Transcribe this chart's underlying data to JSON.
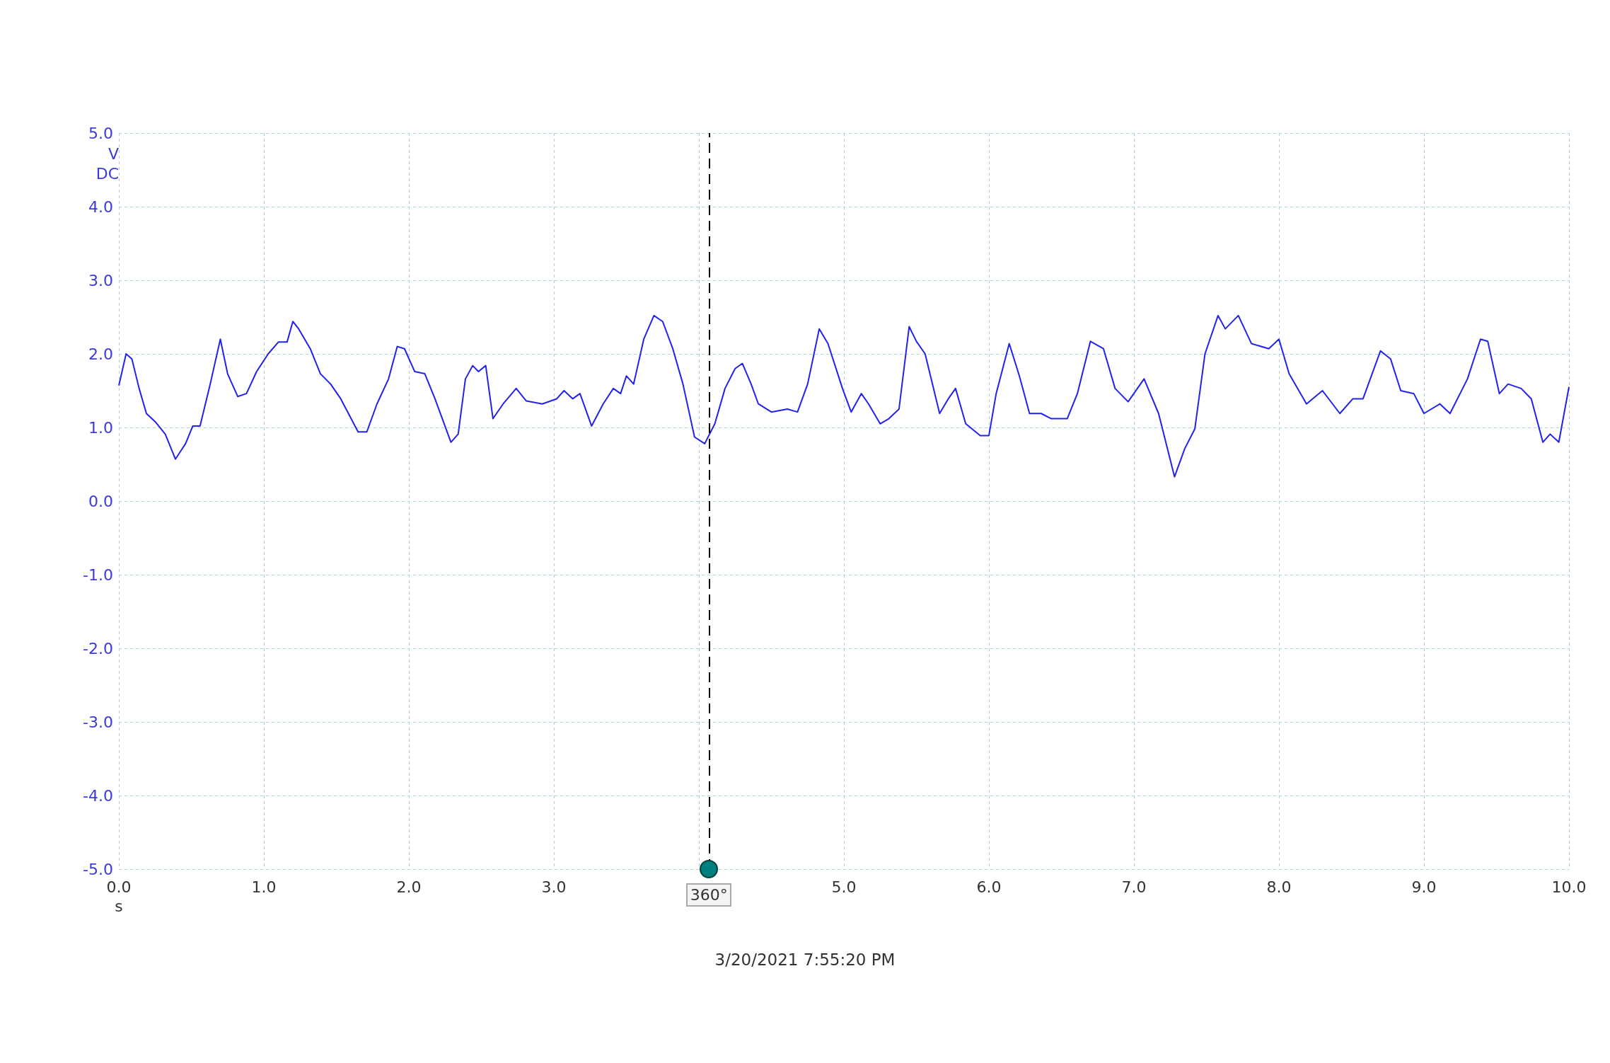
{
  "chart_data": {
    "type": "line",
    "xlabel": "s",
    "ylabel": "V DC",
    "annotations": [
      "3/20/2021 7:55:20 PM",
      {
        "text": "360°",
        "x": 4.07,
        "y": -5
      }
    ],
    "xlim": [
      0,
      10
    ],
    "ylim": [
      -5,
      5
    ],
    "xticks": [
      {
        "value": 0,
        "label": "0.0"
      },
      {
        "value": 1,
        "label": "1.0"
      },
      {
        "value": 2,
        "label": "2.0"
      },
      {
        "value": 3,
        "label": "3.0"
      },
      {
        "value": 4,
        "label": null
      },
      {
        "value": 5,
        "label": "5.0"
      },
      {
        "value": 6,
        "label": "6.0"
      },
      {
        "value": 7,
        "label": "7.0"
      },
      {
        "value": 8,
        "label": "8.0"
      },
      {
        "value": 9,
        "label": "9.0"
      },
      {
        "value": 10,
        "label": "10.0"
      }
    ],
    "yticks": [
      {
        "value": -5,
        "label": "-5.0"
      },
      {
        "value": -4,
        "label": "-4.0"
      },
      {
        "value": -3,
        "label": "-3.0"
      },
      {
        "value": -2,
        "label": "-2.0"
      },
      {
        "value": -1,
        "label": "-1.0"
      },
      {
        "value": 0,
        "label": "0.0"
      },
      {
        "value": 1,
        "label": "1.0"
      },
      {
        "value": 2,
        "label": "2.0"
      },
      {
        "value": 3,
        "label": "3.0"
      },
      {
        "value": 4,
        "label": "4.0"
      },
      {
        "value": 5,
        "label": "5.0"
      }
    ],
    "grid": true,
    "marker": "none",
    "line_style": "solid",
    "ref_lines": [
      {
        "axis": "x",
        "value": 4.07,
        "color": "#000000",
        "line_style": "dashed"
      }
    ],
    "series": [
      {
        "color": "#2222ee",
        "x": [
          0,
          0.05,
          0.09,
          0.14,
          0.19,
          0.25,
          0.32,
          0.39,
          0.46,
          0.51,
          0.56,
          0.63,
          0.7,
          0.75,
          0.82,
          0.88,
          0.95,
          1.03,
          1.1,
          1.16,
          1.2,
          1.24,
          1.32,
          1.39,
          1.46,
          1.53,
          1.65,
          1.71,
          1.78,
          1.86,
          1.92,
          1.97,
          2.04,
          2.11,
          2.18,
          2.29,
          2.34,
          2.39,
          2.44,
          2.48,
          2.53,
          2.58,
          2.65,
          2.74,
          2.81,
          2.92,
          3.02,
          3.07,
          3.13,
          3.18,
          3.26,
          3.34,
          3.41,
          3.46,
          3.5,
          3.55,
          3.62,
          3.69,
          3.75,
          3.82,
          3.89,
          3.97,
          4.04,
          4.11,
          4.18,
          4.25,
          4.3,
          4.36,
          4.41,
          4.5,
          4.61,
          4.68,
          4.75,
          4.83,
          4.89,
          4.99,
          5.05,
          5.12,
          5.17,
          5.25,
          5.31,
          5.38,
          5.45,
          5.5,
          5.56,
          5.66,
          5.72,
          5.77,
          5.84,
          5.94,
          6,
          6.05,
          6.14,
          6.21,
          6.28,
          6.36,
          6.43,
          6.54,
          6.61,
          6.7,
          6.79,
          6.87,
          6.96,
          7.07,
          7.17,
          7.28,
          7.35,
          7.42,
          7.49,
          7.58,
          7.63,
          7.72,
          7.81,
          7.93,
          8,
          8.07,
          8.19,
          8.3,
          8.42,
          8.51,
          8.58,
          8.7,
          8.77,
          8.84,
          8.93,
          9,
          9.11,
          9.18,
          9.3,
          9.39,
          9.44,
          9.52,
          9.58,
          9.67,
          9.74,
          9.82,
          9.87,
          9.93,
          10
        ],
        "values": [
          1.57,
          2,
          1.93,
          1.53,
          1.19,
          1.08,
          0.91,
          0.57,
          0.78,
          1.02,
          1.02,
          1.59,
          2.2,
          1.73,
          1.42,
          1.46,
          1.76,
          2,
          2.16,
          2.16,
          2.44,
          2.34,
          2.07,
          1.73,
          1.59,
          1.39,
          0.94,
          0.94,
          1.32,
          1.66,
          2.1,
          2.07,
          1.76,
          1.73,
          1.39,
          0.8,
          0.91,
          1.66,
          1.84,
          1.76,
          1.84,
          1.12,
          1.32,
          1.53,
          1.36,
          1.32,
          1.39,
          1.5,
          1.39,
          1.46,
          1.02,
          1.32,
          1.53,
          1.46,
          1.7,
          1.59,
          2.2,
          2.52,
          2.44,
          2.07,
          1.59,
          0.87,
          0.78,
          1.05,
          1.53,
          1.8,
          1.87,
          1.59,
          1.32,
          1.21,
          1.25,
          1.21,
          1.59,
          2.34,
          2.14,
          1.53,
          1.21,
          1.46,
          1.32,
          1.05,
          1.12,
          1.25,
          2.37,
          2.17,
          2,
          1.19,
          1.39,
          1.53,
          1.05,
          0.89,
          0.89,
          1.46,
          2.14,
          1.7,
          1.19,
          1.19,
          1.12,
          1.12,
          1.46,
          2.17,
          2.07,
          1.53,
          1.35,
          1.66,
          1.19,
          0.33,
          0.71,
          0.98,
          2,
          2.52,
          2.34,
          2.52,
          2.14,
          2.07,
          2.2,
          1.73,
          1.32,
          1.5,
          1.19,
          1.39,
          1.39,
          2.04,
          1.93,
          1.5,
          1.46,
          1.19,
          1.32,
          1.19,
          1.66,
          2.2,
          2.17,
          1.46,
          1.59,
          1.53,
          1.39,
          0.8,
          0.91,
          0.8,
          1.55
        ]
      }
    ]
  }
}
